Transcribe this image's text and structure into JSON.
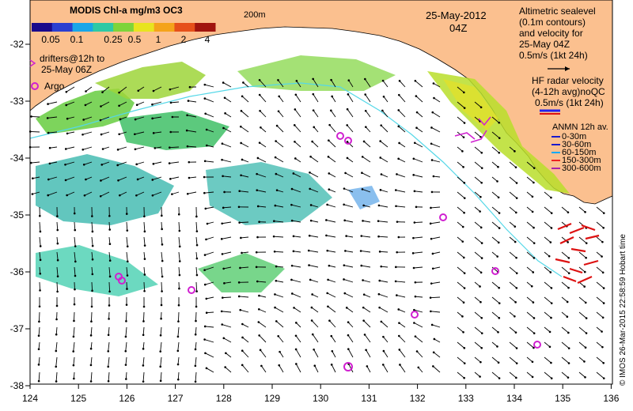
{
  "map": {
    "title": "MODIS Chl-a mg/m3 OC3",
    "colorbar_ticks": [
      "0.05",
      "0.1",
      "0.25",
      "0.5",
      "1",
      "2",
      "4"
    ],
    "colorbar_colors": [
      "#1a0a8c",
      "#2a3fd0",
      "#18a6e8",
      "#2ec9a5",
      "#7ed43a",
      "#e8e41f",
      "#f4a31b",
      "#e6501a",
      "#a0140e"
    ],
    "date": "25-May-2012",
    "time": "04Z",
    "isobath_label": "200m",
    "legend_drifters": [
      "drifters@12h to",
      "25-May 06Z"
    ],
    "legend_argo": "Argo",
    "altimetry_note": [
      "Altimetric sealevel",
      "(0.1m contours)",
      "and velocity for",
      "25-May 04Z",
      "0.5m/s (1kt 24h)"
    ],
    "hf_radar_note": [
      "HF radar velocity",
      "(4-12h avg)noQC",
      "0.5m/s (1kt 24h)"
    ],
    "anmn_title": "ANMN 12h av.",
    "anmn_items": [
      {
        "label": "0-30m",
        "color": "#1a1acc"
      },
      {
        "label": "30-60m",
        "color": "#1a1acc"
      },
      {
        "label": "60-150m",
        "color": "#00aaff"
      },
      {
        "label": "150-300m",
        "color": "#ee2222"
      },
      {
        "label": "300-600m",
        "color": "#aa22aa"
      }
    ],
    "credit": "© IMOS 26-Mar-2015 22:58:59 Hobart time",
    "lon_ticks": [
      "124",
      "125",
      "126",
      "127",
      "128",
      "129",
      "130",
      "131",
      "132",
      "133",
      "134",
      "135",
      "136"
    ],
    "lat_ticks": [
      "-32",
      "-33",
      "-34",
      "-35",
      "-36",
      "-37",
      "-38"
    ],
    "colors": {
      "land": "#fbc08f",
      "ocean": "#ffffff",
      "argo": "#d020d0",
      "drifter": "#d020d0",
      "hf_radar": "#dd1111",
      "isobath": "#55d8e8"
    }
  }
}
